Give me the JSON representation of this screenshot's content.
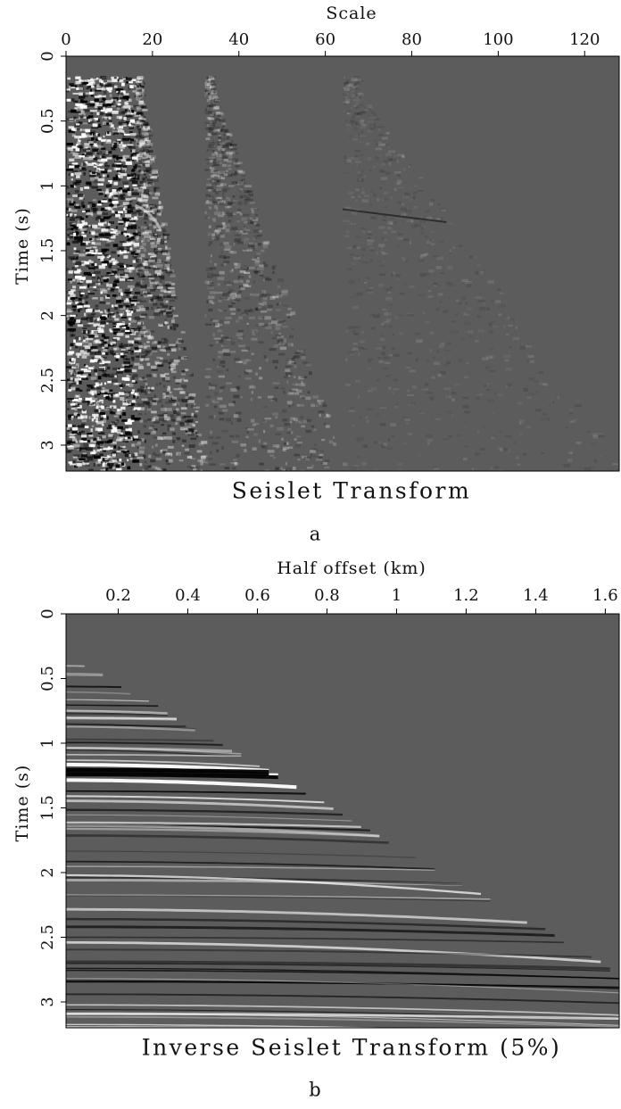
{
  "chart_data": [
    {
      "type": "image",
      "title": "Seislet Transform",
      "xlabel": "Scale",
      "ylabel": "Time (s)",
      "xlim": [
        0,
        128
      ],
      "xticks": [
        0,
        20,
        40,
        60,
        80,
        100,
        120
      ],
      "ylim": [
        0,
        3.2
      ],
      "yticks": [
        0,
        0.5,
        1,
        1.5,
        2,
        2.5,
        3
      ],
      "caption": "a"
    },
    {
      "type": "image",
      "title": "Inverse Seislet Transform (5%)",
      "xlabel": "Half offset (km)",
      "ylabel": "Time (s)",
      "xlim": [
        0.05,
        1.64
      ],
      "xticks": [
        0.2,
        0.4,
        0.6,
        0.8,
        1,
        1.2,
        1.4,
        1.6
      ],
      "ylim": [
        0,
        3.2
      ],
      "yticks": [
        0,
        0.5,
        1,
        1.5,
        2,
        2.5,
        3
      ],
      "caption": "b"
    }
  ]
}
